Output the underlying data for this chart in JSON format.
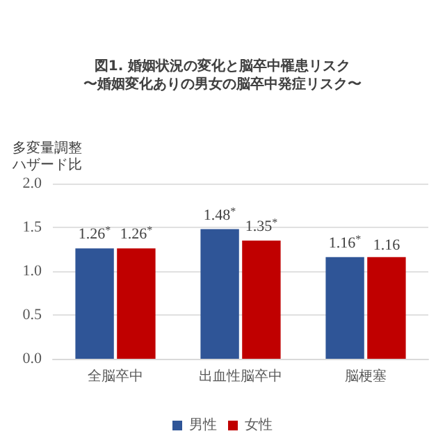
{
  "chart_data": {
    "type": "bar",
    "title": "図1. 婚姻状況の変化と脳卒中罹患リスク",
    "subtitle": "〜婚姻変化ありの男女の脳卒中発症リスク〜",
    "ylabel": "多変量調整ハザード比",
    "categories": [
      "全脳卒中",
      "出血性脳卒中",
      "脳梗塞"
    ],
    "series": [
      {
        "name": "男性",
        "color": "#2f5597",
        "values": [
          1.26,
          1.48,
          1.16
        ],
        "value_labels": [
          "1.26$^{*}$",
          "1.48$^{*}$",
          "1.16$^{*}$"
        ]
      },
      {
        "name": "女性",
        "color": "#c00000",
        "values": [
          1.26,
          1.35,
          1.16
        ],
        "value_labels": [
          "1.26$^{*}$",
          "1.35$^{*}$",
          "1.16"
        ]
      }
    ],
    "ylim": [
      0,
      2
    ],
    "yticks": [
      {
        "value": 0,
        "label": "0.0"
      },
      {
        "value": 0.5,
        "label": "0.5"
      },
      {
        "value": 1,
        "label": "1.0"
      },
      {
        "value": 1.5,
        "label": "1.5"
      },
      {
        "value": 2,
        "label": "2.0"
      }
    ],
    "grid": "y",
    "legend": "bottom"
  }
}
